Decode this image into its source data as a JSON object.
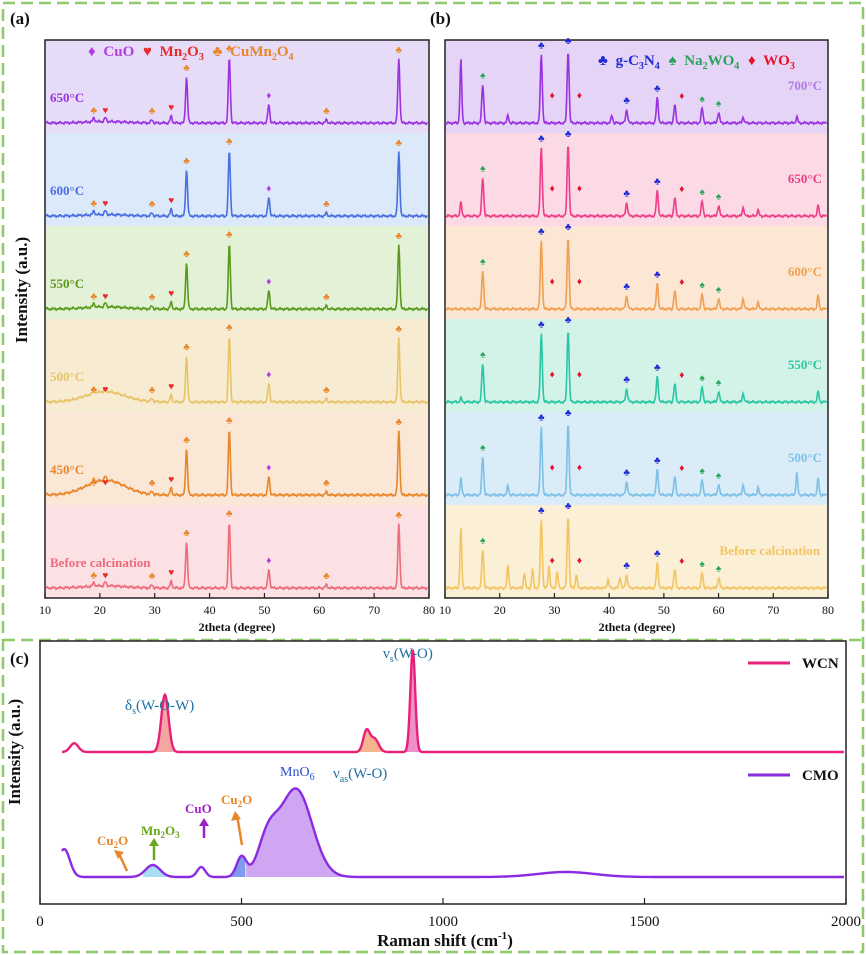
{
  "colors": {
    "border": "#8ec96a",
    "cuo": "#b23ee0",
    "mn2o3": "#e82a2a",
    "cumn2o4": "#e8862a",
    "gcn": "#1f2ad8",
    "na2wo4": "#27a35a",
    "wo3": "#e8102a"
  },
  "chart_data": [
    {
      "panel": "(a)",
      "type": "line",
      "xlabel": "2theta (degree)",
      "ylabel": "Intensity (a.u.)",
      "xlim": [
        10,
        80
      ],
      "xticks": [
        "10",
        "20",
        "30",
        "40",
        "50",
        "60",
        "70",
        "80"
      ],
      "legend": [
        {
          "symbol": "♦",
          "label": "CuO",
          "color": "#b23ee0"
        },
        {
          "symbol": "♥",
          "label": "Mn2O3",
          "color": "#e82a2a"
        },
        {
          "symbol": "♣",
          "label": "CuMn2O4",
          "color": "#e8862a"
        }
      ],
      "series": [
        {
          "name": "650°C",
          "line": "#9a32e0",
          "band": "#e7dcf7"
        },
        {
          "name": "600°C",
          "line": "#4a6fe0",
          "band": "#dbe9fb"
        },
        {
          "name": "550°C",
          "line": "#5a9a1c",
          "band": "#e3f2d6"
        },
        {
          "name": "500°C",
          "line": "#e8c468",
          "band": "#f7ecd2"
        },
        {
          "name": "450°C",
          "line": "#e8862a",
          "band": "#fbe7d6"
        },
        {
          "name": "Before calcination",
          "line": "#ee6b7b",
          "band": "#fbe1e3"
        }
      ],
      "peaks": [
        {
          "x": 18.9,
          "phase": "CuMn2O4",
          "h": 0.05
        },
        {
          "x": 21.0,
          "phase": "Mn2O3",
          "h": 0.05
        },
        {
          "x": 29.5,
          "phase": "CuMn2O4",
          "h": 0.04
        },
        {
          "x": 33.0,
          "phase": "Mn2O3",
          "h": 0.09
        },
        {
          "x": 35.8,
          "phase": "CuMn2O4",
          "h": 0.62
        },
        {
          "x": 43.6,
          "phase": "CuMn2O4",
          "h": 0.88
        },
        {
          "x": 50.8,
          "phase": "CuO",
          "h": 0.25
        },
        {
          "x": 61.3,
          "phase": "CuMn2O4",
          "h": 0.04
        },
        {
          "x": 74.5,
          "phase": "CuMn2O4",
          "h": 0.86
        }
      ]
    },
    {
      "panel": "(b)",
      "type": "line",
      "xlabel": "2theta (degree)",
      "xlim": [
        10,
        80
      ],
      "xticks": [
        "10",
        "20",
        "30",
        "40",
        "50",
        "60",
        "70",
        "80"
      ],
      "legend": [
        {
          "symbol": "♣",
          "label": "g-C3N4",
          "color": "#1f2ad8"
        },
        {
          "symbol": "♠",
          "label": "Na2WO4",
          "color": "#27a35a"
        },
        {
          "symbol": "♦",
          "label": "WO3",
          "color": "#e8102a"
        }
      ],
      "series": [
        {
          "name": "700°C",
          "line": "#9a32e0",
          "band": "#e6d4f6",
          "label_color": "#b07ae0"
        },
        {
          "name": "650°C",
          "line": "#ef3e88",
          "band": "#fbd9e5",
          "label_color": "#ef3e88"
        },
        {
          "name": "600°C",
          "line": "#f0a050",
          "band": "#fbe7d4",
          "label_color": "#f0a050"
        },
        {
          "name": "550°C",
          "line": "#28c7a2",
          "band": "#d3f3e9",
          "label_color": "#28c7a2"
        },
        {
          "name": "500°C",
          "line": "#7ec0e6",
          "band": "#d9ecf8",
          "label_color": "#7ec0e6"
        },
        {
          "name": "Before calcination",
          "line": "#f2c462",
          "band": "#fbf0d5",
          "label_color": "#f2c462"
        }
      ],
      "peaks": [
        {
          "x": 16.9,
          "phase": "Na2WO4",
          "h": 0.52
        },
        {
          "x": 27.6,
          "phase": "g-C3N4",
          "h": 0.92
        },
        {
          "x": 28.3,
          "phase": "WO3",
          "h": 0.0
        },
        {
          "x": 32.5,
          "phase": "g-C3N4",
          "h": 0.98
        },
        {
          "x": 33.3,
          "phase": "WO3",
          "h": 0.0
        },
        {
          "x": 43.2,
          "phase": "g-C3N4",
          "h": 0.18
        },
        {
          "x": 48.8,
          "phase": "g-C3N4",
          "h": 0.34
        },
        {
          "x": 52.0,
          "phase": "WO3",
          "h": 0.24
        },
        {
          "x": 57.0,
          "phase": "Na2WO4",
          "h": 0.2
        },
        {
          "x": 60.0,
          "phase": "Na2WO4",
          "h": 0.14
        }
      ]
    },
    {
      "panel": "(c)",
      "type": "line",
      "xlabel": "Raman shift (cm-1)",
      "ylabel": "Intensity (a.u.)",
      "xlim": [
        0,
        2000
      ],
      "xticks": [
        "0",
        "500",
        "1000",
        "1500",
        "2000"
      ],
      "series": [
        {
          "name": "WCN",
          "color": "#e8207a",
          "peaks": [
            {
              "x": 85,
              "h": 0.08
            },
            {
              "x": 310,
              "h": 0.52
            },
            {
              "x": 810,
              "h": 0.19
            },
            {
              "x": 830,
              "h": 0.12
            },
            {
              "x": 925,
              "h": 0.93
            }
          ]
        },
        {
          "name": "CMO",
          "color": "#8a2be2",
          "peaks": [
            {
              "x": 60,
              "h": 0.28
            },
            {
              "x": 280,
              "h": 0.12
            },
            {
              "x": 400,
              "h": 0.1
            },
            {
              "x": 500,
              "h": 0.2
            },
            {
              "x": 565,
              "h": 0.35
            },
            {
              "x": 635,
              "h": 0.88
            },
            {
              "x": 1305,
              "h": 0.05
            }
          ]
        }
      ],
      "annotations": [
        {
          "text": "δs(W-O-W)",
          "x": 310
        },
        {
          "text": "νas(W-O)",
          "x": 810
        },
        {
          "text": "νs(W-O)",
          "x": 925
        },
        {
          "text": "Cu2O",
          "x": 220
        },
        {
          "text": "Mn2O3",
          "x": 280
        },
        {
          "text": "CuO",
          "x": 400
        },
        {
          "text": "Cu2O",
          "x": 500
        },
        {
          "text": "MnO6",
          "x": 635
        }
      ]
    }
  ],
  "labels": {
    "a_panel": "(a)",
    "b_panel": "(b)",
    "c_panel": "(c)",
    "a_legend": [
      "CuO",
      "Mn",
      "2",
      "O",
      "3",
      "CuMn",
      "2",
      "O",
      "4"
    ],
    "b_legend": [
      "g-C",
      "3",
      "N",
      "4",
      "Na",
      "2",
      "WO",
      "4",
      "WO",
      "3"
    ],
    "c_wcn_peaks": [
      "δ",
      "s",
      "(W-O-W)",
      "ν",
      "as",
      "(W-O)",
      "ν",
      "s",
      "(W-O)"
    ],
    "c_cmo_peaks": [
      "Cu",
      "2",
      "O",
      "Mn",
      "2",
      "O",
      "3",
      "CuO",
      "Cu",
      "2",
      "O",
      "MnO",
      "6"
    ],
    "c_xlabel_parts": [
      "Raman shift (cm",
      "-1",
      ")"
    ],
    "series_a": [
      "650°C",
      "600°C",
      "550°C",
      "500°C",
      "450°C",
      "Before calcination"
    ],
    "series_b": [
      "700°C",
      "650°C",
      "600°C",
      "550°C",
      "500°C",
      "Before calcination"
    ],
    "wcn": "WCN",
    "cmo": "CMO"
  }
}
